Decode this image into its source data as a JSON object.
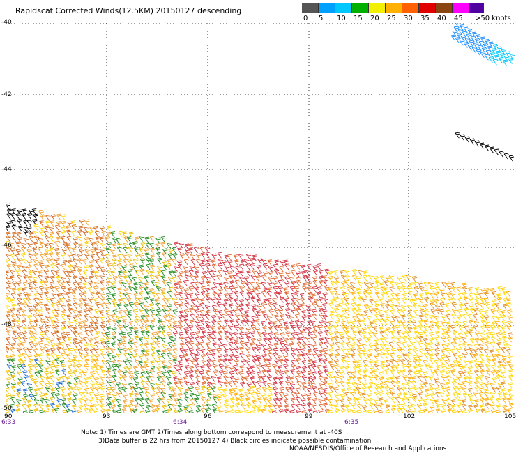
{
  "title": "Rapidscat Corrected Winds(12.5KM) 20150127 descending",
  "scale": {
    "labels": [
      "0",
      "5",
      "10",
      "15",
      "20",
      "25",
      "30",
      "35",
      "40",
      "45",
      ">50 knots"
    ],
    "colors": [
      "#555555",
      "#00a0ff",
      "#00c8ff",
      "#00b000",
      "#f0f000",
      "#ffb000",
      "#ff6000",
      "#e00000",
      "#8b4513",
      "#ff00ff",
      "#5000a0"
    ]
  },
  "axes": {
    "lat_labels": [
      "-40",
      "-42",
      "-44",
      "-46",
      "-48",
      "-50"
    ],
    "lon_labels": [
      "90",
      "93",
      "96",
      "99",
      "102",
      "105"
    ],
    "time_labels": [
      "6:33",
      "6:34",
      "6:35"
    ]
  },
  "notes": {
    "line1": "Note: 1) Times are GMT 2)Times along bottom correspond to measurement at -40S",
    "line2": "3)Data buffer is 22 hrs from 20150127 4) Black circles indicate possible contamination",
    "line3": "NOAA/NESDIS/Office of Research and Applications"
  },
  "map": {
    "lat_range": [
      -40,
      -50
    ],
    "lon_range": [
      90,
      105
    ],
    "grid": true,
    "barb_colors": [
      "#000000",
      "#ffd700",
      "#ffae00",
      "#ff8a00",
      "#d2691e",
      "#d23040",
      "#e8aa20",
      "#228b22",
      "#1e6ad6",
      "#00c8ff"
    ]
  }
}
